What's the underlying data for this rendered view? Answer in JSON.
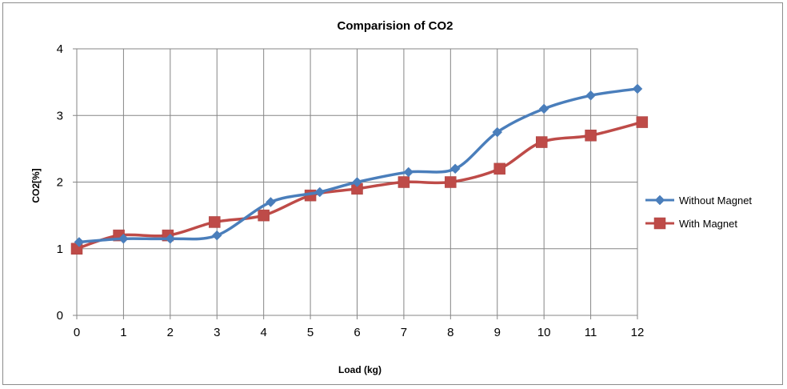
{
  "chart_data": {
    "type": "line",
    "title": "Comparision of CO2",
    "xlabel": "Load (kg)",
    "ylabel": "CO2[%]",
    "xlim": [
      0,
      12
    ],
    "ylim": [
      0,
      4
    ],
    "x_ticks": [
      0,
      1,
      2,
      3,
      4,
      5,
      6,
      7,
      8,
      9,
      10,
      11,
      12
    ],
    "y_ticks": [
      0,
      1,
      2,
      3,
      4
    ],
    "grid": true,
    "smooth": true,
    "legend_position": "right",
    "series": [
      {
        "name": "Without Magnet",
        "color": "#4a7ebb",
        "marker": "diamond",
        "x": [
          0.05,
          1,
          2,
          3,
          4.15,
          5.2,
          6,
          7.1,
          8.1,
          9,
          10,
          11,
          12
        ],
        "y": [
          1.1,
          1.15,
          1.15,
          1.2,
          1.7,
          1.85,
          2.0,
          2.15,
          2.2,
          2.75,
          3.1,
          3.3,
          3.4
        ]
      },
      {
        "name": "With Magnet",
        "color": "#be4b48",
        "marker": "square",
        "x": [
          0,
          0.9,
          1.95,
          2.95,
          4,
          5,
          6,
          7,
          8,
          9.05,
          9.95,
          11,
          12.1
        ],
        "y": [
          1.0,
          1.2,
          1.2,
          1.4,
          1.5,
          1.8,
          1.9,
          2.0,
          2.0,
          2.2,
          2.6,
          2.7,
          2.9
        ]
      }
    ]
  }
}
